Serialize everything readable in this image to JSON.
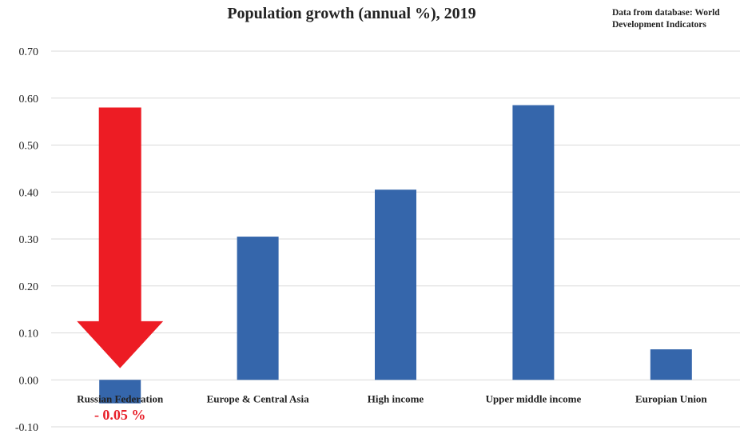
{
  "colors": {
    "bar": "#3566ab",
    "grid": "#d9d9d9",
    "arrow": "#ed1c24",
    "annotation": "#e8202a"
  },
  "chart_data": {
    "type": "bar",
    "title": "Population growth (annual %), 2019",
    "source_note": "Data from database: World Development Indicators",
    "categories": [
      "Russian Federation",
      "Europe & Central Asia",
      "High income",
      "Upper middle income",
      "Europian Union"
    ],
    "values": [
      -0.05,
      0.305,
      0.405,
      0.585,
      0.065
    ],
    "ylim": [
      -0.1,
      0.7
    ],
    "yticks": [
      -0.1,
      0.0,
      0.1,
      0.2,
      0.3,
      0.4,
      0.5,
      0.6,
      0.7
    ],
    "ytick_labels": [
      "-0.10",
      "0.00",
      "0.10",
      "0.20",
      "0.30",
      "0.40",
      "0.50",
      "0.60",
      "0.70"
    ],
    "grid": true,
    "annotation": {
      "text": "- 0.05 %",
      "target": "Russian Federation",
      "marker": "down-arrow"
    }
  }
}
